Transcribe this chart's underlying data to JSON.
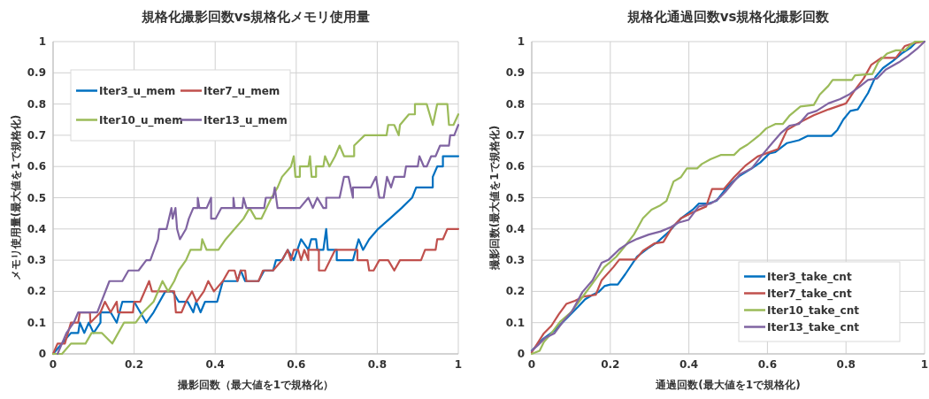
{
  "chart_data": [
    {
      "type": "line",
      "title": "規格化撮影回数vs規格化メモリ使用量",
      "xlabel": "撮影回数（最大値を1で規格化）",
      "ylabel": "メモリ使用量(最大値を1で規格化)",
      "xlim": [
        0,
        1
      ],
      "ylim": [
        0,
        1
      ],
      "xticks": [
        0,
        0.2,
        0.4,
        0.6,
        0.8,
        1
      ],
      "yticks": [
        0,
        0.1,
        0.2,
        0.3,
        0.4,
        0.5,
        0.6,
        0.7,
        0.8,
        0.9,
        1
      ],
      "grid": true,
      "legend": "top left",
      "series": [
        {
          "name": "Iter3_u_mem",
          "color": "#0070c0",
          "x": [
            0,
            0.044,
            0.062,
            0.066,
            0.077,
            0.088,
            0.1,
            0.117,
            0.117,
            0.142,
            0.157,
            0.171,
            0.2,
            0.23,
            0.248,
            0.277,
            0.295,
            0.31,
            0.332,
            0.346,
            0.353,
            0.364,
            0.375,
            0.405,
            0.419,
            0.455,
            0.463,
            0.474,
            0.507,
            0.521,
            0.543,
            0.55,
            0.565,
            0.579,
            0.594,
            0.612,
            0.63,
            0.637,
            0.649,
            0.652,
            0.667,
            0.674,
            0.678,
            0.7,
            0.7,
            0.74,
            0.754,
            0.765,
            0.78,
            0.802,
            0.831,
            0.86,
            0.886,
            0.896,
            0.937,
            0.937,
            0.948,
            0.962,
            0.962,
            1
          ],
          "values": [
            0,
            0.067,
            0.067,
            0.1,
            0.067,
            0.1,
            0.067,
            0.1,
            0.133,
            0.133,
            0.1,
            0.167,
            0.167,
            0.1,
            0.133,
            0.2,
            0.2,
            0.167,
            0.167,
            0.133,
            0.167,
            0.133,
            0.167,
            0.167,
            0.233,
            0.233,
            0.267,
            0.233,
            0.233,
            0.267,
            0.267,
            0.3,
            0.3,
            0.333,
            0.3,
            0.367,
            0.333,
            0.367,
            0.367,
            0.333,
            0.333,
            0.4,
            0.333,
            0.333,
            0.3,
            0.3,
            0.367,
            0.333,
            0.367,
            0.4,
            0.433,
            0.467,
            0.5,
            0.533,
            0.533,
            0.567,
            0.6,
            0.6,
            0.633,
            0.633
          ]
        },
        {
          "name": "Iter7_u_mem",
          "color": "#c0504d",
          "x": [
            0,
            0.011,
            0.029,
            0.044,
            0.062,
            0.066,
            0.091,
            0.092,
            0.117,
            0.128,
            0.142,
            0.157,
            0.16,
            0.197,
            0.2,
            0.215,
            0.237,
            0.244,
            0.299,
            0.303,
            0.317,
            0.328,
            0.343,
            0.354,
            0.372,
            0.383,
            0.397,
            0.419,
            0.434,
            0.448,
            0.455,
            0.463,
            0.474,
            0.477,
            0.507,
            0.518,
            0.543,
            0.565,
            0.579,
            0.587,
            0.594,
            0.605,
            0.612,
            0.62,
            0.63,
            0.63,
            0.656,
            0.656,
            0.671,
            0.696,
            0.751,
            0.751,
            0.776,
            0.78,
            0.791,
            0.805,
            0.827,
            0.842,
            0.856,
            0.908,
            0.918,
            0.944,
            0.948,
            0.962,
            0.973,
            1
          ],
          "values": [
            0,
            0.033,
            0.033,
            0.1,
            0.1,
            0.133,
            0.133,
            0.1,
            0.133,
            0.167,
            0.133,
            0.167,
            0.133,
            0.133,
            0.167,
            0.167,
            0.233,
            0.2,
            0.2,
            0.133,
            0.133,
            0.167,
            0.2,
            0.167,
            0.2,
            0.233,
            0.2,
            0.233,
            0.267,
            0.267,
            0.233,
            0.267,
            0.267,
            0.233,
            0.233,
            0.267,
            0.267,
            0.3,
            0.333,
            0.3,
            0.333,
            0.333,
            0.3,
            0.333,
            0.3,
            0.333,
            0.333,
            0.267,
            0.267,
            0.333,
            0.333,
            0.3,
            0.3,
            0.267,
            0.267,
            0.3,
            0.3,
            0.267,
            0.3,
            0.3,
            0.333,
            0.333,
            0.367,
            0.367,
            0.4,
            0.4
          ]
        },
        {
          "name": "Iter10_u_mem",
          "color": "#9bbb59",
          "x": [
            0,
            0.022,
            0.044,
            0.08,
            0.095,
            0.12,
            0.146,
            0.175,
            0.204,
            0.222,
            0.248,
            0.27,
            0.284,
            0.299,
            0.31,
            0.328,
            0.339,
            0.365,
            0.368,
            0.379,
            0.408,
            0.426,
            0.448,
            0.47,
            0.485,
            0.5,
            0.514,
            0.539,
            0.554,
            0.565,
            0.587,
            0.594,
            0.598,
            0.609,
            0.609,
            0.63,
            0.634,
            0.638,
            0.649,
            0.649,
            0.667,
            0.671,
            0.682,
            0.696,
            0.707,
            0.718,
            0.743,
            0.743,
            0.769,
            0.823,
            0.827,
            0.842,
            0.853,
            0.856,
            0.878,
            0.893,
            0.893,
            0.922,
            0.937,
            0.948,
            0.959,
            0.973,
            0.977,
            0.988,
            1
          ],
          "values": [
            0,
            0,
            0.033,
            0.033,
            0.067,
            0.067,
            0.033,
            0.1,
            0.1,
            0.133,
            0.167,
            0.233,
            0.2,
            0.233,
            0.267,
            0.3,
            0.333,
            0.333,
            0.367,
            0.333,
            0.333,
            0.367,
            0.4,
            0.433,
            0.467,
            0.433,
            0.433,
            0.5,
            0.533,
            0.567,
            0.6,
            0.633,
            0.567,
            0.567,
            0.6,
            0.6,
            0.633,
            0.567,
            0.567,
            0.6,
            0.6,
            0.633,
            0.6,
            0.633,
            0.667,
            0.633,
            0.633,
            0.667,
            0.7,
            0.7,
            0.733,
            0.733,
            0.7,
            0.733,
            0.767,
            0.767,
            0.8,
            0.8,
            0.733,
            0.8,
            0.8,
            0.8,
            0.733,
            0.733,
            0.767
          ]
        },
        {
          "name": "Iter13_u_mem",
          "color": "#8064a2",
          "x": [
            0.011,
            0.033,
            0.051,
            0.062,
            0.109,
            0.139,
            0.171,
            0.186,
            0.211,
            0.23,
            0.24,
            0.259,
            0.262,
            0.28,
            0.292,
            0.295,
            0.302,
            0.306,
            0.313,
            0.328,
            0.335,
            0.346,
            0.357,
            0.357,
            0.361,
            0.379,
            0.39,
            0.39,
            0.401,
            0.415,
            0.445,
            0.445,
            0.448,
            0.467,
            0.47,
            0.477,
            0.521,
            0.525,
            0.543,
            0.547,
            0.554,
            0.609,
            0.63,
            0.641,
            0.652,
            0.667,
            0.674,
            0.674,
            0.707,
            0.718,
            0.729,
            0.74,
            0.74,
            0.784,
            0.797,
            0.805,
            0.816,
            0.824,
            0.834,
            0.842,
            0.867,
            0.871,
            0.9,
            0.904,
            0.915,
            0.922,
            0.933,
            0.944,
            0.955,
            0.977,
            0.98,
            0.99,
            1
          ],
          "values": [
            0,
            0.067,
            0.1,
            0.133,
            0.133,
            0.233,
            0.233,
            0.267,
            0.267,
            0.3,
            0.3,
            0.367,
            0.4,
            0.4,
            0.467,
            0.433,
            0.467,
            0.4,
            0.367,
            0.4,
            0.433,
            0.467,
            0.467,
            0.5,
            0.467,
            0.467,
            0.5,
            0.433,
            0.433,
            0.467,
            0.467,
            0.5,
            0.467,
            0.467,
            0.5,
            0.467,
            0.467,
            0.5,
            0.5,
            0.533,
            0.467,
            0.467,
            0.5,
            0.467,
            0.5,
            0.467,
            0.467,
            0.5,
            0.5,
            0.567,
            0.567,
            0.5,
            0.533,
            0.533,
            0.567,
            0.5,
            0.5,
            0.567,
            0.533,
            0.567,
            0.567,
            0.6,
            0.6,
            0.633,
            0.6,
            0.6,
            0.633,
            0.633,
            0.667,
            0.667,
            0.7,
            0.7,
            0.733
          ]
        }
      ]
    },
    {
      "type": "line",
      "title": "規格化通過回数vs規格化撮影回数",
      "xlabel": "通過回数(最大値を1で規格化)",
      "ylabel": "撮影回数(最大値を1で規格化)",
      "xlim": [
        0,
        1
      ],
      "ylim": [
        0,
        1
      ],
      "xticks": [
        0,
        0.2,
        0.4,
        0.6,
        0.8,
        1
      ],
      "yticks": [
        0,
        0.1,
        0.2,
        0.3,
        0.4,
        0.5,
        0.6,
        0.7,
        0.8,
        0.9,
        1
      ],
      "grid": true,
      "legend": "bottom right",
      "series": [
        {
          "name": "Iter3_take_cnt",
          "color": "#0070c0",
          "x": [
            0,
            0.028,
            0.058,
            0.088,
            0.118,
            0.136,
            0.155,
            0.17,
            0.185,
            0.2,
            0.219,
            0.238,
            0.268,
            0.298,
            0.32,
            0.35,
            0.38,
            0.41,
            0.425,
            0.448,
            0.47,
            0.5,
            0.53,
            0.56,
            0.582,
            0.605,
            0.62,
            0.65,
            0.68,
            0.703,
            0.763,
            0.778,
            0.793,
            0.811,
            0.83,
            0.856,
            0.875,
            0.894,
            0.92,
            0.942,
            0.965,
            0.98,
            1
          ],
          "values": [
            0.01,
            0.047,
            0.075,
            0.113,
            0.151,
            0.175,
            0.189,
            0.198,
            0.217,
            0.222,
            0.222,
            0.255,
            0.311,
            0.34,
            0.358,
            0.392,
            0.434,
            0.462,
            0.481,
            0.481,
            0.49,
            0.538,
            0.571,
            0.594,
            0.613,
            0.642,
            0.646,
            0.675,
            0.684,
            0.698,
            0.698,
            0.717,
            0.75,
            0.778,
            0.783,
            0.835,
            0.887,
            0.915,
            0.939,
            0.962,
            0.981,
            1,
            1
          ]
        },
        {
          "name": "Iter7_take_cnt",
          "color": "#c0504d",
          "x": [
            0,
            0.031,
            0.05,
            0.069,
            0.088,
            0.11,
            0.133,
            0.163,
            0.178,
            0.208,
            0.223,
            0.264,
            0.283,
            0.313,
            0.335,
            0.358,
            0.38,
            0.41,
            0.444,
            0.459,
            0.489,
            0.515,
            0.545,
            0.575,
            0.597,
            0.627,
            0.65,
            0.688,
            0.718,
            0.756,
            0.8,
            0.822,
            0.845,
            0.864,
            0.89,
            0.927,
            0.95,
            0.972,
            1
          ],
          "values": [
            0.005,
            0.066,
            0.09,
            0.127,
            0.16,
            0.17,
            0.184,
            0.189,
            0.236,
            0.278,
            0.302,
            0.302,
            0.33,
            0.354,
            0.358,
            0.406,
            0.434,
            0.453,
            0.472,
            0.528,
            0.528,
            0.566,
            0.604,
            0.632,
            0.642,
            0.656,
            0.717,
            0.745,
            0.764,
            0.783,
            0.802,
            0.844,
            0.882,
            0.925,
            0.948,
            0.948,
            0.986,
            0.995,
            1
          ]
        },
        {
          "name": "Iter10_take_cnt",
          "color": "#9bbb59",
          "x": [
            0,
            0.02,
            0.031,
            0.05,
            0.073,
            0.099,
            0.125,
            0.155,
            0.185,
            0.215,
            0.234,
            0.26,
            0.283,
            0.305,
            0.328,
            0.343,
            0.361,
            0.38,
            0.395,
            0.421,
            0.433,
            0.455,
            0.481,
            0.515,
            0.53,
            0.549,
            0.568,
            0.582,
            0.597,
            0.62,
            0.639,
            0.657,
            0.684,
            0.718,
            0.733,
            0.755,
            0.766,
            0.815,
            0.823,
            0.867,
            0.882,
            0.905,
            0.927,
            0.95,
            0.965,
            0.976,
            1
          ],
          "values": [
            0,
            0.01,
            0.038,
            0.066,
            0.104,
            0.132,
            0.175,
            0.226,
            0.278,
            0.311,
            0.34,
            0.382,
            0.434,
            0.462,
            0.476,
            0.49,
            0.552,
            0.566,
            0.594,
            0.594,
            0.608,
            0.623,
            0.637,
            0.637,
            0.656,
            0.67,
            0.689,
            0.703,
            0.722,
            0.736,
            0.736,
            0.764,
            0.792,
            0.797,
            0.83,
            0.858,
            0.877,
            0.877,
            0.892,
            0.896,
            0.934,
            0.962,
            0.972,
            0.972,
            0.99,
            1,
            1
          ]
        },
        {
          "name": "Iter13_take_cnt",
          "color": "#8064a2",
          "x": [
            0,
            0.016,
            0.035,
            0.058,
            0.08,
            0.103,
            0.129,
            0.155,
            0.178,
            0.196,
            0.223,
            0.245,
            0.268,
            0.298,
            0.328,
            0.354,
            0.373,
            0.399,
            0.425,
            0.455,
            0.474,
            0.493,
            0.53,
            0.56,
            0.59,
            0.612,
            0.635,
            0.657,
            0.68,
            0.703,
            0.725,
            0.755,
            0.785,
            0.807,
            0.837,
            0.856,
            0.879,
            0.901,
            0.935,
            0.957,
            0.98,
            1
          ],
          "values": [
            0.01,
            0.028,
            0.052,
            0.066,
            0.104,
            0.137,
            0.198,
            0.236,
            0.292,
            0.302,
            0.335,
            0.354,
            0.368,
            0.382,
            0.392,
            0.406,
            0.42,
            0.429,
            0.472,
            0.481,
            0.495,
            0.519,
            0.575,
            0.594,
            0.642,
            0.675,
            0.708,
            0.731,
            0.736,
            0.769,
            0.778,
            0.802,
            0.816,
            0.83,
            0.858,
            0.877,
            0.882,
            0.91,
            0.934,
            0.953,
            0.976,
            1
          ]
        }
      ]
    }
  ]
}
